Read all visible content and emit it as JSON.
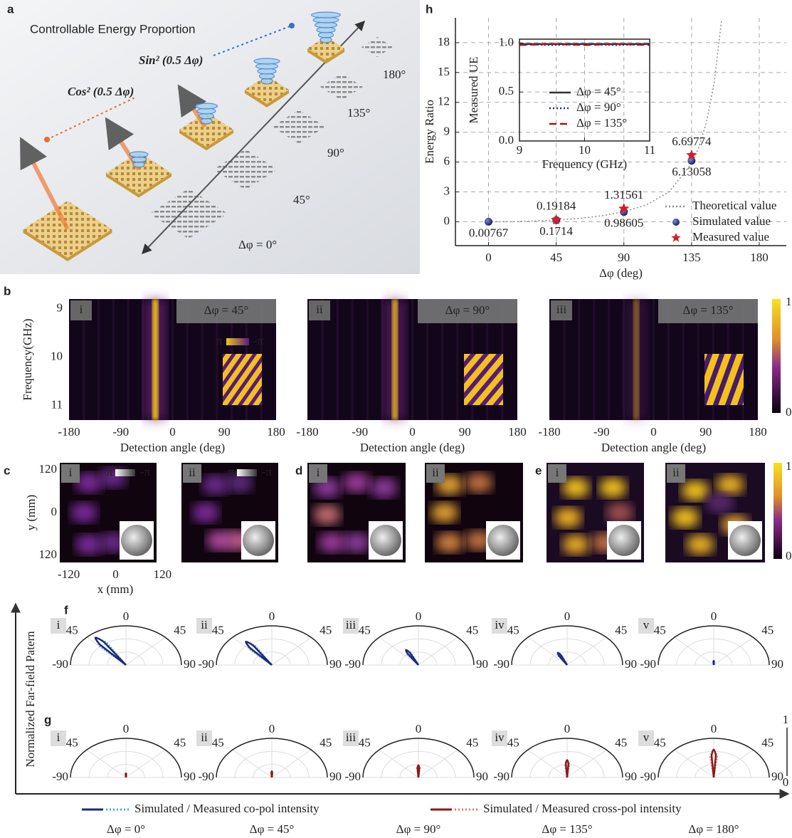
{
  "panel_a": {
    "label": "a",
    "title": "Controllable Energy Proportion",
    "sin_label": "Sin² (0.5 Δφ)",
    "cos_label": "Cos² (0.5 Δφ)",
    "step_labels": [
      "180°",
      "135°",
      "90°",
      "45°",
      "Δφ = 0°"
    ]
  },
  "chart_data": [
    {
      "type": "line",
      "panel_label": "h",
      "x_label": "Δφ (deg)",
      "y_label": "Energy Ratio",
      "xlim": [
        -22,
        198
      ],
      "ylim": [
        -2.4,
        20.5
      ],
      "xticks": [
        0,
        45,
        90,
        135,
        180
      ],
      "yticks": [
        0,
        3,
        6,
        9,
        12,
        15,
        18
      ],
      "grid": true,
      "legend": "lower right",
      "series": [
        {
          "name": "Theoretical value",
          "color": "#8a8a8a",
          "mode": "dotted",
          "x": [
            0,
            15,
            30,
            45,
            60,
            75,
            90,
            105,
            120,
            135,
            140,
            145,
            150,
            155
          ],
          "values": [
            0,
            0.0173,
            0.0718,
            0.1716,
            0.3333,
            0.5888,
            1,
            1.698,
            3,
            5.828,
            7.549,
            10.06,
            13.93,
            20.35
          ]
        },
        {
          "name": "Simulated value",
          "color": "#1f2a7a",
          "mode": "circle",
          "x": [
            0,
            45,
            90,
            135
          ],
          "values": [
            0.00767,
            0.1714,
            0.98605,
            6.13058
          ],
          "show_values": true
        },
        {
          "name": "Measured value",
          "color": "#d0202a",
          "mode": "star",
          "x": [
            45,
            90,
            135
          ],
          "values": [
            0.19184,
            1.31561,
            6.69774
          ],
          "show_values": true
        }
      ]
    },
    {
      "type": "line",
      "x_label": "Frequency (GHz)",
      "y_label": "Measured UE",
      "xlim": [
        9,
        11
      ],
      "ylim": [
        0,
        1.04
      ],
      "xticks": [
        9,
        10,
        11
      ],
      "yticks": [
        {
          "value": 0,
          "label": "0.0"
        },
        0.5,
        {
          "value": 1,
          "label": "1.0"
        }
      ],
      "grid": true,
      "legend": "center",
      "series": [
        {
          "name": "Δφ = 45°",
          "color": "#333333",
          "mode": "solid",
          "x": [
            9,
            9.5,
            10,
            10.5,
            11
          ],
          "values": [
            0.99,
            0.99,
            0.99,
            0.99,
            0.99
          ]
        },
        {
          "name": "Δφ = 90°",
          "color": "#1f2a9a",
          "mode": "dotted",
          "x": [
            9,
            9.5,
            10,
            10.5,
            11
          ],
          "values": [
            0.99,
            0.98,
            0.99,
            0.98,
            0.99
          ]
        },
        {
          "name": "Δφ = 135°",
          "color": "#a01818",
          "mode": "dashed",
          "x": [
            9,
            9.5,
            10,
            10.5,
            11
          ],
          "values": [
            0.98,
            0.99,
            0.98,
            0.99,
            0.98
          ]
        }
      ]
    }
  ],
  "panel_b": {
    "label": "b",
    "y_label": "Frequency(GHz)",
    "ylim": [
      8.8,
      11.3
    ],
    "yticks": [
      9,
      10,
      11
    ],
    "x_label": "Detection angle (deg)",
    "xlim": [
      -180,
      180
    ],
    "xticks": [
      -180,
      -90,
      0,
      90,
      180
    ],
    "phase_labels": [
      "π",
      "-π"
    ],
    "colorbar": [
      1,
      0
    ],
    "maps": [
      {
        "label": "i",
        "tag": "Δφ = 45°",
        "beam_angle": -30,
        "beam_intensity": 1
      },
      {
        "label": "ii",
        "tag": "Δφ = 90°",
        "beam_angle": -30,
        "beam_intensity": 0.85
      },
      {
        "label": "iii",
        "tag": "Δφ = 135°",
        "beam_angle": -30,
        "beam_intensity": 0.45
      }
    ]
  },
  "panel_cde": {
    "y_label": "y (mm)",
    "ylim": [
      -140,
      140
    ],
    "yticks": [
      120,
      0,
      {
        "value": -120,
        "label": "120"
      }
    ],
    "x_label": "x (mm)",
    "xlim": [
      -143,
      143
    ],
    "xticks": [
      -120,
      0,
      120
    ],
    "phase_labels": [
      "π",
      "-π"
    ],
    "colorbar": [
      1,
      0
    ],
    "panels": [
      {
        "label": "c",
        "subs": [
          "i",
          "ii"
        ]
      },
      {
        "label": "d",
        "subs": [
          "i",
          "ii"
        ]
      },
      {
        "label": "e",
        "subs": [
          "i",
          "ii"
        ]
      }
    ]
  },
  "panel_fg": {
    "y_label": "Normalized Far-field Patern",
    "angle_ticks": [
      -90,
      -45,
      0,
      45,
      90
    ],
    "colorbar": [
      1,
      0
    ],
    "rows": [
      {
        "label": "f",
        "color": "#1f2a7a",
        "measured_color": "#4aa8e0",
        "plots": [
          {
            "label": "i",
            "peak_angle": -38,
            "peak": 1.0
          },
          {
            "label": "ii",
            "peak_angle": -38,
            "peak": 0.85
          },
          {
            "label": "iii",
            "peak_angle": -30,
            "peak": 0.5
          },
          {
            "label": "iv",
            "peak_angle": -28,
            "peak": 0.4
          },
          {
            "label": "v",
            "peak_angle": 0,
            "peak": 0.12
          }
        ]
      },
      {
        "label": "g",
        "color": "#8b1a1a",
        "measured_color": "#f07070",
        "plots": [
          {
            "label": "i",
            "peak_angle": 0,
            "peak": 0.12
          },
          {
            "label": "ii",
            "peak_angle": 0,
            "peak": 0.18
          },
          {
            "label": "iii",
            "peak_angle": 0,
            "peak": 0.35
          },
          {
            "label": "iv",
            "peak_angle": 0,
            "peak": 0.5
          },
          {
            "label": "v",
            "peak_angle": 0,
            "peak": 0.8
          }
        ]
      }
    ],
    "legend": [
      "Simulated / Measured co-pol intensity",
      "Simulated / Measured cross-pol intensity"
    ],
    "conditions": [
      "Δφ = 0°",
      "Δφ = 45°",
      "Δφ = 90°",
      "Δφ = 135°",
      "Δφ = 180°"
    ]
  }
}
